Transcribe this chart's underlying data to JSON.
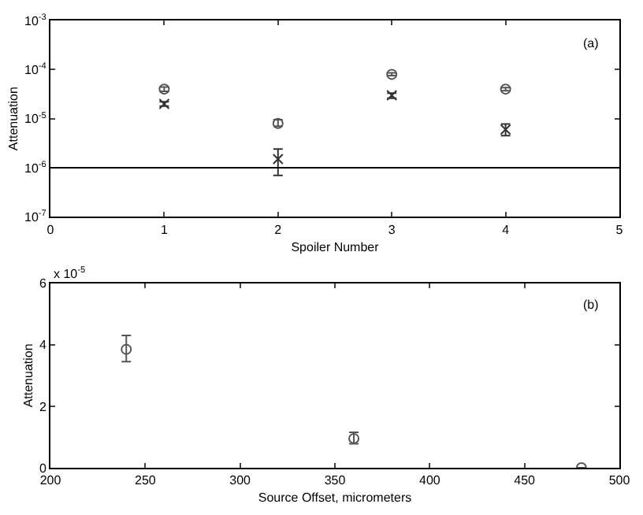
{
  "chart_data": [
    {
      "type": "scatter",
      "xlabel": "Spoiler Number",
      "ylabel": "Attenuation",
      "log": "y",
      "grid": false,
      "xlim": [
        0,
        5
      ],
      "xticks": [
        0,
        1,
        2,
        3,
        4,
        5
      ],
      "ylim": [
        1e-07,
        0.001
      ],
      "yticks": [
        {
          "value": 1e-07,
          "label": "10$^{-7}$"
        },
        {
          "value": 1e-06,
          "label": "10$^{-6}$"
        },
        {
          "value": 1e-05,
          "label": "10$^{-5}$"
        },
        {
          "value": 0.0001,
          "label": "10$^{-4}$"
        },
        {
          "value": 0.001,
          "label": "10$^{-3}$"
        }
      ],
      "x": [
        1,
        2,
        3,
        4
      ],
      "series": [
        {
          "color": "#555555",
          "marker": "circle",
          "values": [
            4e-05,
            8e-06,
            8e-05,
            4e-05
          ],
          "errors": [
            [
              3.6e-05,
              4.4e-05
            ],
            [
              7e-06,
              9.5e-06
            ],
            [
              7.5e-05,
              8.6e-05
            ],
            [
              3.7e-05,
              4.3e-05
            ]
          ]
        },
        {
          "color": "#333333",
          "marker": "cross",
          "values": [
            2e-05,
            1.5e-06,
            3e-05,
            6e-06
          ],
          "errors": [
            [
              1.8e-05,
              2.2e-05
            ],
            [
              7e-07,
              2.4e-06
            ],
            [
              2.6e-05,
              3.3e-05
            ],
            [
              4.5e-06,
              7.8e-06
            ]
          ]
        }
      ],
      "ref_lines": [
        {
          "axis": "y",
          "value": 1e-06,
          "color": "#000000"
        }
      ],
      "annotations": [
        "(a)"
      ]
    },
    {
      "type": "scatter",
      "xlabel": "Source Offset, micrometers",
      "ylabel": "Attenuation",
      "grid": false,
      "xlim": [
        200,
        500
      ],
      "xticks": [
        200,
        250,
        300,
        350,
        400,
        450,
        500
      ],
      "ylim": [
        0,
        6
      ],
      "yticks": [
        0,
        2,
        4,
        6
      ],
      "x": [
        240,
        360,
        480
      ],
      "series": [
        {
          "color": "#555555",
          "marker": "circle",
          "values": [
            3.85,
            0.95,
            0
          ],
          "errors": [
            [
              3.45,
              4.3
            ],
            [
              0.78,
              1.15
            ],
            null
          ]
        }
      ],
      "annotations": [
        "x 10$^{-5}$",
        "(b)"
      ]
    }
  ]
}
